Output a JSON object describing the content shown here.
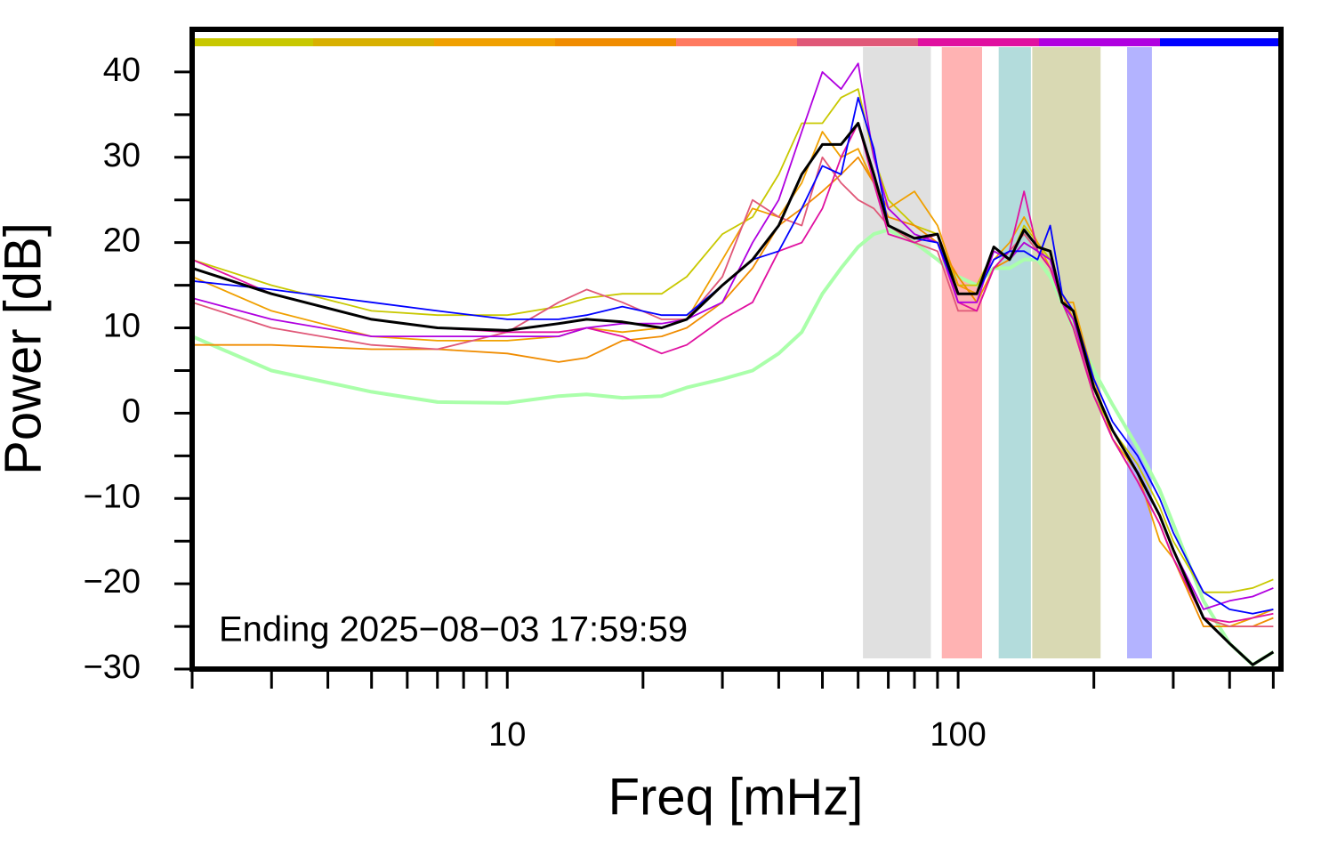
{
  "chart_data": {
    "type": "line",
    "x_label": "Freq [mHz]",
    "y_label": "Power [dB]",
    "annotation": "Ending 2025−08−03 17:59:59",
    "xscale": "log",
    "xlim": [
      2,
      520
    ],
    "ylim": [
      -30,
      45
    ],
    "xticks": [
      10,
      100
    ],
    "xminorticks": [
      2,
      3,
      4,
      5,
      6,
      7,
      8,
      9,
      20,
      30,
      40,
      50,
      60,
      70,
      80,
      90,
      200,
      300,
      400,
      500
    ],
    "yticks": [
      {
        "value": -30,
        "label": "−30"
      },
      {
        "value": -20,
        "label": "−20"
      },
      {
        "value": -10,
        "label": "−10"
      },
      0,
      10,
      20,
      30,
      40
    ],
    "yminorticks": [
      -25,
      -15,
      -5,
      5,
      15,
      25,
      35
    ],
    "colorbar": [
      "#c8c800",
      "#d8b000",
      "#f0a000",
      "#f08c00",
      "#ff7a60",
      "#e05878",
      "#e010a0",
      "#b000e0",
      "#0000ff"
    ],
    "bands": [
      {
        "xlim": [
          61.5,
          87
        ],
        "color": "#e0e0e0"
      },
      {
        "xlim": [
          92,
          113
        ],
        "color": "#ffb3b3"
      },
      {
        "xlim": [
          123,
          145
        ],
        "color": "#b3dcdc"
      },
      {
        "xlim": [
          146,
          207
        ],
        "color": "#d9d9b3"
      },
      {
        "xlim": [
          237,
          269
        ],
        "color": "#b3b3ff"
      }
    ],
    "x": [
      2,
      3,
      5,
      7,
      10,
      13,
      15,
      18,
      22,
      25,
      30,
      35,
      40,
      45,
      50,
      55,
      60,
      65,
      70,
      80,
      90,
      100,
      110,
      120,
      130,
      140,
      150,
      160,
      170,
      180,
      200,
      220,
      250,
      280,
      300,
      350,
      400,
      450,
      500
    ],
    "series": [
      {
        "color": "#aaffaa",
        "width": 4,
        "values": [
          9,
          5,
          2.5,
          1.3,
          1.2,
          2,
          2.2,
          1.8,
          2,
          3,
          4,
          5,
          7,
          9.5,
          14,
          17,
          19.5,
          21,
          21.5,
          20,
          18,
          16,
          15,
          17,
          17,
          18,
          18,
          16,
          13,
          10,
          5,
          1,
          -4,
          -9,
          -13,
          -22,
          -27,
          -29.5,
          -28
        ]
      },
      {
        "color": "#c8c800",
        "width": 1.8,
        "values": [
          18,
          15,
          12,
          11.5,
          11.5,
          12.5,
          13.5,
          14,
          14,
          16,
          21,
          23,
          28,
          34,
          34,
          37,
          38,
          30,
          25,
          22,
          21,
          15,
          15,
          19,
          18,
          22,
          20,
          18,
          13,
          10,
          2,
          -2,
          -6,
          -11,
          -15,
          -21,
          -21,
          -20.5,
          -19.5
        ]
      },
      {
        "color": "#f0a000",
        "width": 1.8,
        "values": [
          16,
          12,
          9,
          8.5,
          8.5,
          9,
          10,
          9.5,
          10,
          11,
          18,
          24,
          23,
          27,
          33,
          30,
          31,
          27,
          24,
          26,
          22,
          15,
          14,
          18,
          20,
          23,
          20,
          17,
          13,
          13,
          4,
          -3,
          -7,
          -15,
          -17,
          -24,
          -25,
          -24,
          -23
        ]
      },
      {
        "color": "#f08c00",
        "width": 1.8,
        "values": [
          8,
          8,
          7.5,
          7.5,
          7,
          6,
          6.5,
          8.5,
          9,
          10,
          13,
          17,
          22,
          24,
          26,
          28,
          30,
          27,
          23,
          22,
          20,
          16,
          13,
          17,
          18,
          20,
          19,
          17,
          14,
          11,
          2,
          -3,
          -8,
          -13,
          -17,
          -25,
          -25,
          -25,
          -24
        ]
      },
      {
        "color": "#e05878",
        "width": 1.8,
        "values": [
          13,
          10,
          8,
          7.5,
          9.5,
          13,
          14.5,
          13,
          11,
          11,
          16,
          25,
          23,
          22,
          30,
          27,
          25,
          24,
          22,
          20,
          19,
          12,
          12,
          17,
          19,
          21,
          19,
          17,
          13,
          11,
          2,
          -3,
          -8,
          -13,
          -17,
          -24,
          -25,
          -25,
          -25
        ]
      },
      {
        "color": "#e010a0",
        "width": 1.8,
        "values": [
          18,
          14,
          11,
          10,
          9.5,
          9.5,
          10,
          9,
          7,
          8,
          11,
          13,
          19,
          20,
          24,
          30,
          34,
          27,
          21,
          20,
          21,
          13,
          12,
          17,
          19,
          26,
          19,
          17,
          13,
          10,
          2,
          -3,
          -8,
          -13,
          -17,
          -24,
          -24.5,
          -24,
          -23.5
        ]
      },
      {
        "color": "#b000e0",
        "width": 1.8,
        "values": [
          13.5,
          11,
          9,
          9,
          9,
          9,
          10,
          10.5,
          10.5,
          11,
          13,
          20,
          25,
          33,
          40,
          38,
          41,
          30,
          24,
          21,
          20,
          13,
          13,
          19,
          18,
          20,
          19,
          18,
          13,
          11,
          3,
          -2,
          -7,
          -12,
          -16,
          -23,
          -22,
          -21.5,
          -20.5
        ]
      },
      {
        "color": "#0000ff",
        "width": 1.8,
        "values": [
          15.5,
          14.5,
          13,
          12,
          11,
          11,
          11.5,
          12.5,
          11.5,
          11.5,
          15,
          18,
          19,
          24,
          29,
          28,
          37,
          31,
          22,
          20.5,
          20,
          14,
          14,
          18,
          19,
          19,
          18,
          22,
          14,
          12,
          4,
          -1,
          -5,
          -10,
          -14,
          -21,
          -23,
          -23.5,
          -23
        ]
      },
      {
        "color": "#000000",
        "width": 3,
        "values": [
          17,
          14,
          11,
          10,
          9.7,
          10.5,
          11,
          10.7,
          10,
          11,
          15,
          18,
          22,
          28,
          31.5,
          31.5,
          34,
          28,
          22,
          20.5,
          21,
          14,
          14,
          19.5,
          18,
          21.5,
          19.5,
          19,
          13,
          12,
          3,
          -2,
          -7,
          -12,
          -16,
          -24,
          -27,
          -29.5,
          -28
        ]
      }
    ]
  }
}
